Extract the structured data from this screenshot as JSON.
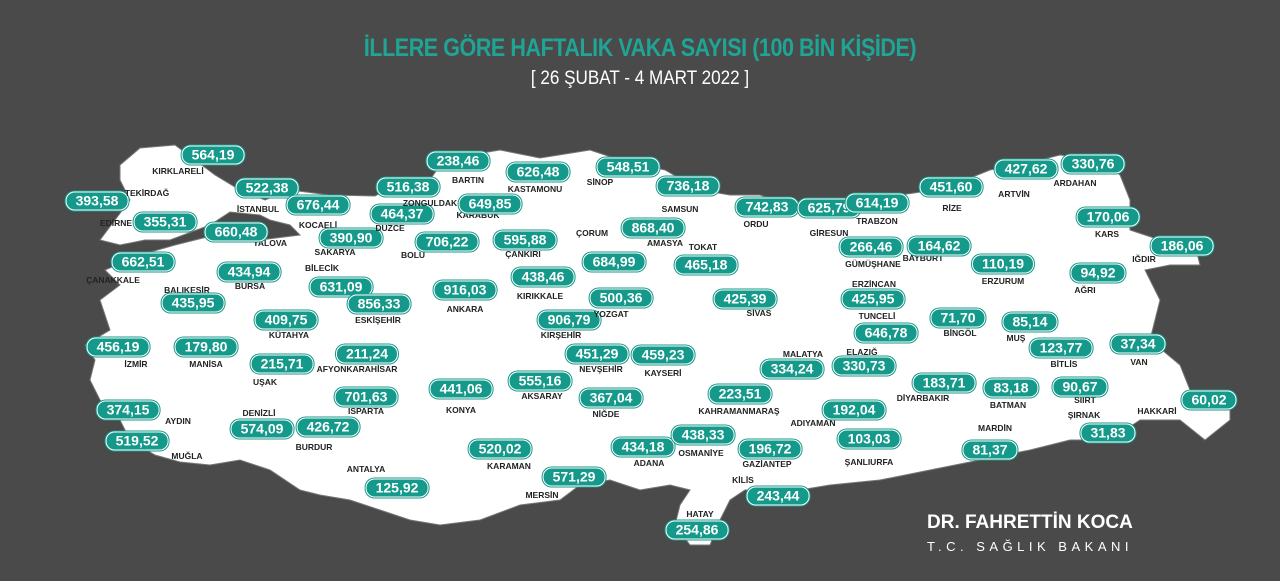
{
  "header": {
    "title": "İLLERE GÖRE HAFTALIK VAKA SAYISI (100 BİN KİŞİDE)",
    "subtitle": "[ 26 ŞUBAT - 4 MART 2022 ]"
  },
  "colors": {
    "background": "#4a4a4a",
    "land": "#ffffff",
    "accent": "#14998a",
    "title": "#1fa596"
  },
  "provinces": [
    {
      "name": "KIRKLARELİ",
      "value": "564,19"
    },
    {
      "name": "EDİRNE",
      "value": "393,58"
    },
    {
      "name": "TEKİRDAĞ",
      "value": "355,31"
    },
    {
      "name": "İSTANBUL",
      "value": "522,38"
    },
    {
      "name": "YALOVA",
      "value": "660,48"
    },
    {
      "name": "KOCAELİ",
      "value": "676,44"
    },
    {
      "name": "ÇANAKKALE",
      "value": "662,51"
    },
    {
      "name": "SAKARYA",
      "value": "390,90"
    },
    {
      "name": "DÜZCE",
      "value": "464,37"
    },
    {
      "name": "ZONGULDAK",
      "value": "516,38"
    },
    {
      "name": "BARTIN",
      "value": "238,46"
    },
    {
      "name": "KARABÜK",
      "value": "649,85"
    },
    {
      "name": "KASTAMONU",
      "value": "626,48"
    },
    {
      "name": "SİNOP",
      "value": "548,51"
    },
    {
      "name": "SAMSUN",
      "value": "736,18"
    },
    {
      "name": "AMASYA",
      "value": "868,40"
    },
    {
      "name": "ÇORUM",
      "value": "684,99"
    },
    {
      "name": "ÇANKIRI",
      "value": "595,88"
    },
    {
      "name": "BOLU",
      "value": "706,22"
    },
    {
      "name": "ANKARA",
      "value": "916,03"
    },
    {
      "name": "BİLECİK",
      "value": "631,09"
    },
    {
      "name": "BURSA",
      "value": "434,94"
    },
    {
      "name": "BALIKESİR",
      "value": "435,95"
    },
    {
      "name": "ESKİŞEHİR",
      "value": "856,33"
    },
    {
      "name": "KÜTAHYA",
      "value": "409,75"
    },
    {
      "name": "KIRIKKALE",
      "value": "438,46"
    },
    {
      "name": "KIRŞEHİR",
      "value": "906,79"
    },
    {
      "name": "YOZGAT",
      "value": "500,36"
    },
    {
      "name": "TOKAT",
      "value": "465,18"
    },
    {
      "name": "ORDU",
      "value": "742,83"
    },
    {
      "name": "GİRESUN",
      "value": "625,79"
    },
    {
      "name": "SİVAS",
      "value": "425,39"
    },
    {
      "name": "İZMİR",
      "value": "456,19"
    },
    {
      "name": "MANİSA",
      "value": "179,80"
    },
    {
      "name": "UŞAK",
      "value": "215,71"
    },
    {
      "name": "AFYONKARAHİSAR",
      "value": "211,24"
    },
    {
      "name": "ISPARTA",
      "value": "701,63"
    },
    {
      "name": "KONYA",
      "value": "441,06"
    },
    {
      "name": "AYDIN",
      "value": "374,15"
    },
    {
      "name": "DENİZLİ",
      "value": "574,09"
    },
    {
      "name": "BURDUR",
      "value": "426,72"
    },
    {
      "name": "MUĞLA",
      "value": "519,52"
    },
    {
      "name": "ANTALYA",
      "value": "125,92"
    },
    {
      "name": "KARAMAN",
      "value": "520,02"
    },
    {
      "name": "MERSİN",
      "value": "571,29"
    },
    {
      "name": "AKSARAY",
      "value": "555,16"
    },
    {
      "name": "NEVŞEHİR",
      "value": "451,29"
    },
    {
      "name": "KAYSERİ",
      "value": "459,23"
    },
    {
      "name": "NİĞDE",
      "value": "367,04"
    },
    {
      "name": "ADANA",
      "value": "434,18"
    },
    {
      "name": "OSMANİYE",
      "value": "438,33"
    },
    {
      "name": "KAHRAMANMARAŞ",
      "value": "223,51"
    },
    {
      "name": "GAZİANTEP",
      "value": "196,72"
    },
    {
      "name": "KİLİS",
      "value": "243,44"
    },
    {
      "name": "HATAY",
      "value": "254,86"
    },
    {
      "name": "MALATYA",
      "value": "334,24"
    },
    {
      "name": "ELAZIĞ",
      "value": "330,73"
    },
    {
      "name": "ADIYAMAN",
      "value": "192,04"
    },
    {
      "name": "ŞANLIURFA",
      "value": "103,03"
    },
    {
      "name": "DİYARBAKIR",
      "value": "183,71"
    },
    {
      "name": "BATMAN",
      "value": "83,18"
    },
    {
      "name": "SİİRT",
      "value": "90,67"
    },
    {
      "name": "MARDİN",
      "value": "81,37"
    },
    {
      "name": "ŞIRNAK",
      "value": "31,83"
    },
    {
      "name": "HAKKARİ",
      "value": "60,02"
    },
    {
      "name": "BİTLİS",
      "value": "123,77"
    },
    {
      "name": "VAN",
      "value": "37,34"
    },
    {
      "name": "MUŞ",
      "value": "85,14"
    },
    {
      "name": "BİNGÖL",
      "value": "71,70"
    },
    {
      "name": "ERZİNCAN",
      "value": "425,95"
    },
    {
      "name": "TUNCELİ",
      "value": "646,78"
    },
    {
      "name": "GÜMÜŞHANE",
      "value": "266,46"
    },
    {
      "name": "BAYBURT",
      "value": "164,62"
    },
    {
      "name": "TRABZON",
      "value": "614,19"
    },
    {
      "name": "RİZE",
      "value": "451,60"
    },
    {
      "name": "ARTVİN",
      "value": "427,62"
    },
    {
      "name": "ARDAHAN",
      "value": "330,76"
    },
    {
      "name": "KARS",
      "value": "170,06"
    },
    {
      "name": "IĞDIR",
      "value": "186,06"
    },
    {
      "name": "ERZURUM",
      "value": "110,19"
    },
    {
      "name": "AĞRI",
      "value": "94,92"
    }
  ],
  "signature": {
    "name": "DR. FAHRETTİN KOCA",
    "role": "T.C. SAĞLIK BAKANI"
  }
}
